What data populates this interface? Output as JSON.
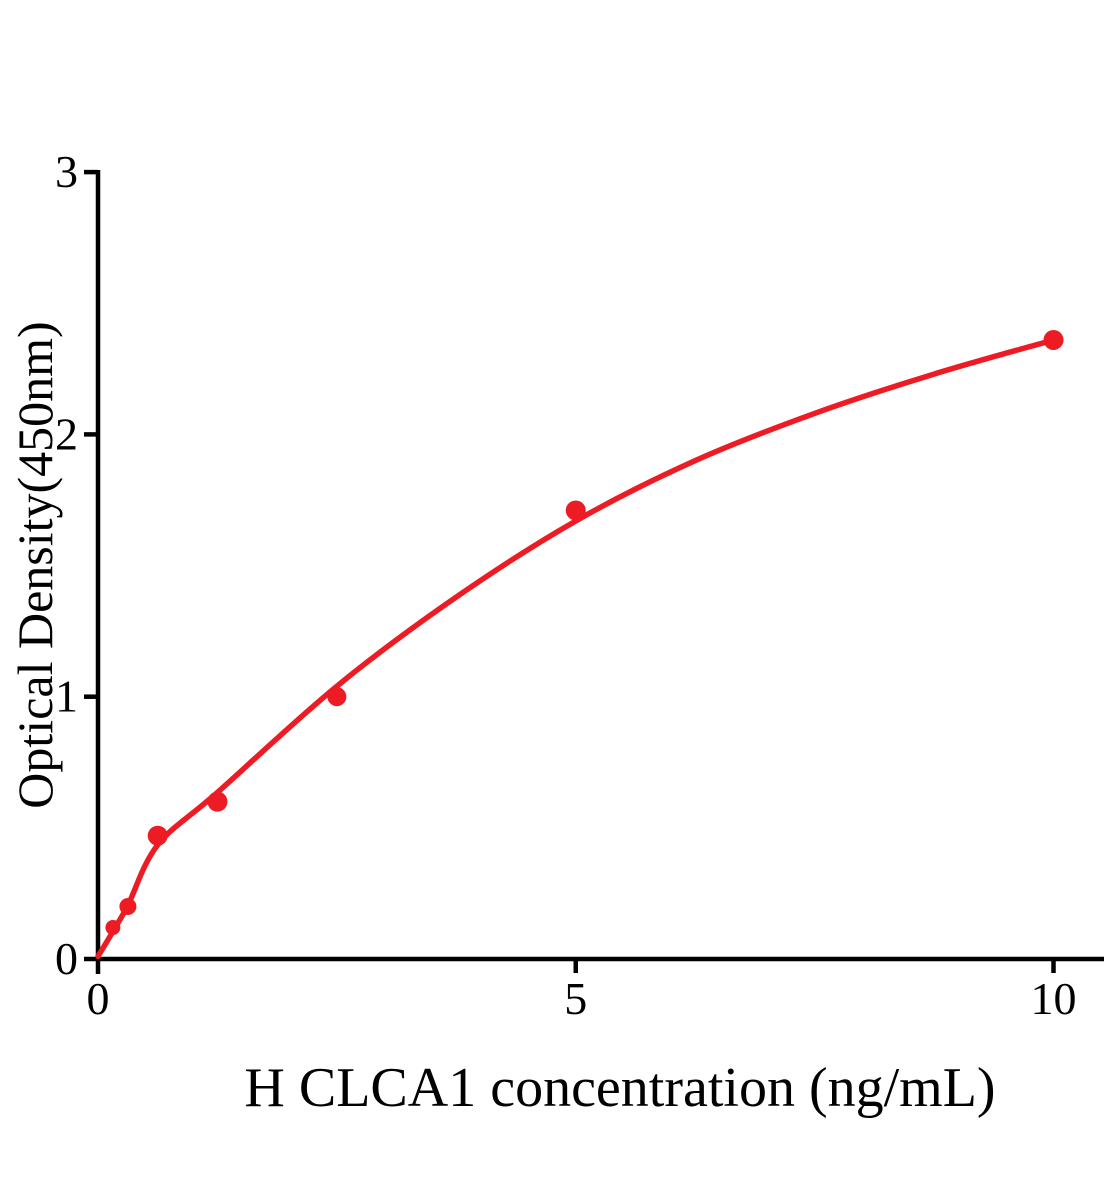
{
  "page": {
    "background_color": "#ffffff"
  },
  "chart_data": {
    "type": "scatter",
    "subtype": "standard-curve-with-fit-line",
    "title": "",
    "xlabel": "H CLCA1 concentration (ng/mL)",
    "ylabel": "Optical Density(450nm)",
    "x_ticks": [
      0,
      5,
      10
    ],
    "x_tick_labels": [
      "0",
      "5",
      "10"
    ],
    "y_ticks": [
      0,
      1,
      2,
      3
    ],
    "y_tick_labels": [
      "0",
      "1",
      "2",
      "3"
    ],
    "xlim": [
      0,
      10.55
    ],
    "ylim": [
      0,
      3
    ],
    "grid": false,
    "legend": "none",
    "axis_color": "#000000",
    "series_color": "#ed1c24",
    "points": [
      {
        "x": 0.156,
        "y": 0.12,
        "r": 7.5
      },
      {
        "x": 0.313,
        "y": 0.2,
        "r": 8.5
      },
      {
        "x": 0.625,
        "y": 0.47,
        "r": 10
      },
      {
        "x": 1.25,
        "y": 0.6,
        "r": 10
      },
      {
        "x": 2.5,
        "y": 1.0,
        "r": 9.5
      },
      {
        "x": 5,
        "y": 1.71,
        "r": 10
      },
      {
        "x": 10,
        "y": 2.36,
        "r": 10
      }
    ],
    "fit_curve": [
      {
        "x": 0,
        "y": 0.01
      },
      {
        "x": 0.156,
        "y": 0.105
      },
      {
        "x": 0.313,
        "y": 0.205
      },
      {
        "x": 0.625,
        "y": 0.435
      },
      {
        "x": 1.25,
        "y": 0.635
      },
      {
        "x": 2.5,
        "y": 1.04
      },
      {
        "x": 3.75,
        "y": 1.38
      },
      {
        "x": 5,
        "y": 1.67
      },
      {
        "x": 6.25,
        "y": 1.9
      },
      {
        "x": 7.5,
        "y": 2.08
      },
      {
        "x": 8.75,
        "y": 2.23
      },
      {
        "x": 10,
        "y": 2.36
      }
    ]
  }
}
